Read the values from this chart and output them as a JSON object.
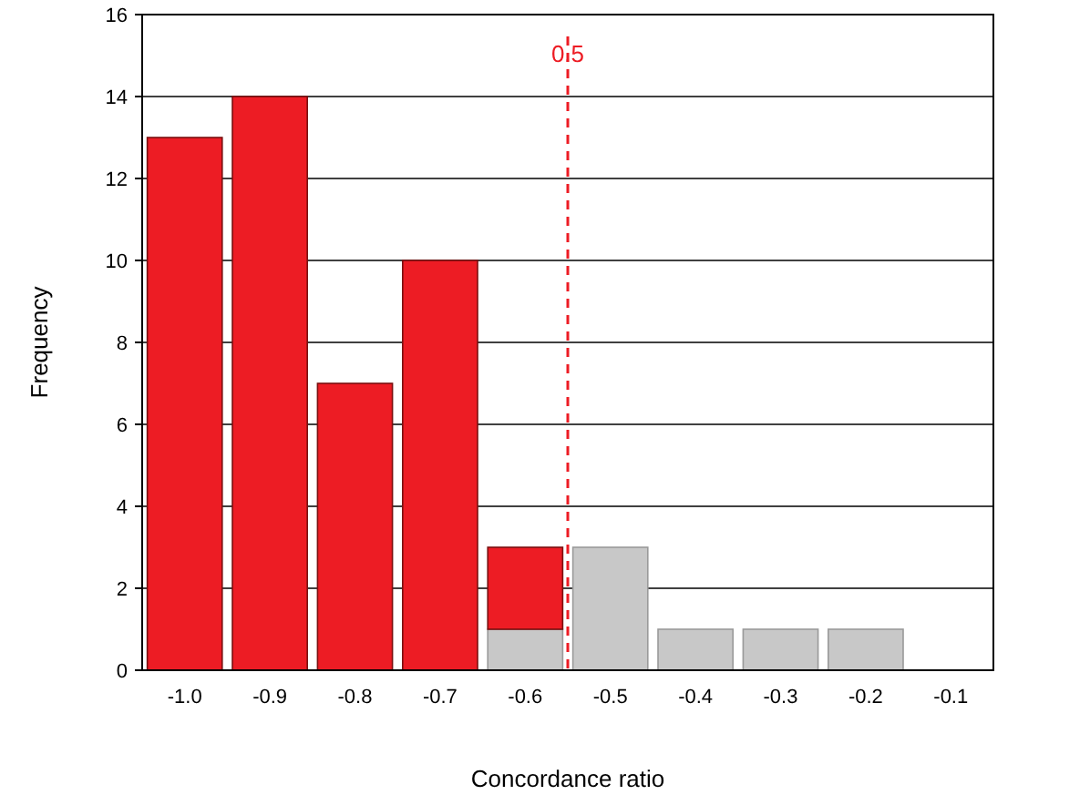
{
  "chart_data": {
    "type": "bar",
    "stacked": true,
    "xlabel": "Concordance ratio",
    "ylabel": "Frequency",
    "x": [
      -1.0,
      -0.9,
      -0.8,
      -0.7,
      -0.6,
      -0.5,
      -0.4,
      -0.3,
      -0.2,
      -0.1
    ],
    "xlim": [
      -1.05,
      -0.05
    ],
    "xticks": [
      {
        "value": -1.0,
        "label": "-1.0"
      },
      {
        "value": -0.9,
        "label": "-0.9"
      },
      {
        "value": -0.8,
        "label": "-0.8"
      },
      {
        "value": -0.7,
        "label": "-0.7"
      },
      {
        "value": -0.6,
        "label": "-0.6"
      },
      {
        "value": -0.5,
        "label": "-0.5"
      },
      {
        "value": -0.4,
        "label": "-0.4"
      },
      {
        "value": -0.3,
        "label": "-0.3"
      },
      {
        "value": -0.2,
        "label": "-0.2"
      },
      {
        "value": -0.1,
        "label": "-0.1"
      }
    ],
    "ylim": [
      0,
      16
    ],
    "yticks": [
      0,
      2,
      4,
      6,
      8,
      10,
      12,
      14,
      16
    ],
    "grid": "y",
    "series": [
      {
        "color": "#c8c8c8",
        "values": [
          0,
          0,
          0,
          0,
          1,
          3,
          1,
          1,
          1,
          0
        ]
      },
      {
        "color": "#ed1c24",
        "values": [
          13,
          14,
          7,
          10,
          2,
          0,
          0,
          0,
          0,
          0
        ]
      }
    ],
    "ref_lines": [
      {
        "axis": "x",
        "value": -0.55,
        "color": "#ed1c24",
        "line_style": "dashed"
      }
    ],
    "annotations": [
      "0.5"
    ]
  }
}
